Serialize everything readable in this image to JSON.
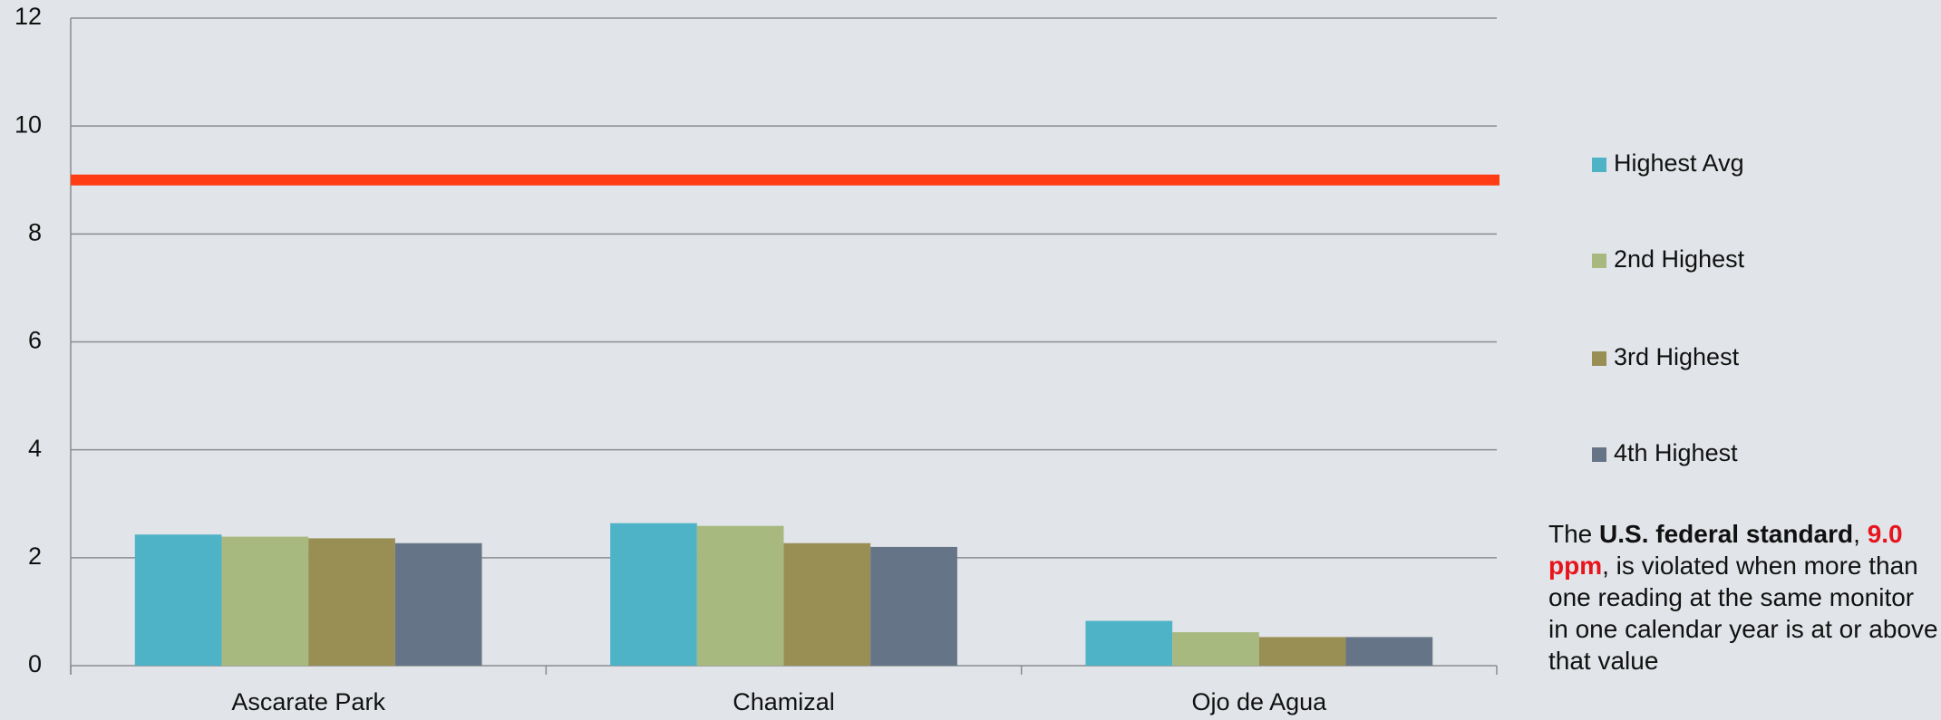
{
  "chart_data": {
    "type": "bar",
    "categories": [
      "Ascarate Park",
      "Chamizal",
      "Ojo de Agua"
    ],
    "series": [
      {
        "name": "Highest Avg",
        "color": "#4fb3c8",
        "values": [
          2.43,
          2.64,
          0.83
        ]
      },
      {
        "name": "2nd Highest",
        "color": "#a8b97f",
        "values": [
          2.39,
          2.59,
          0.62
        ]
      },
      {
        "name": "3rd Highest",
        "color": "#998f55",
        "values": [
          2.36,
          2.27,
          0.53
        ]
      },
      {
        "name": "4th Highest",
        "color": "#657587",
        "values": [
          2.27,
          2.2,
          0.53
        ]
      }
    ],
    "threshold": {
      "value": 9,
      "color": "#ff3c14"
    },
    "ylim": [
      0,
      12
    ],
    "yticks": [
      0,
      2,
      4,
      6,
      8,
      10,
      12
    ],
    "grid": true,
    "legend": "right",
    "annotation": [
      "The ",
      "U.S. federal standard",
      ", ",
      "9.0 ppm",
      ", is violated when more than one reading at the same monitor in one calendar year is at or above that value"
    ]
  }
}
